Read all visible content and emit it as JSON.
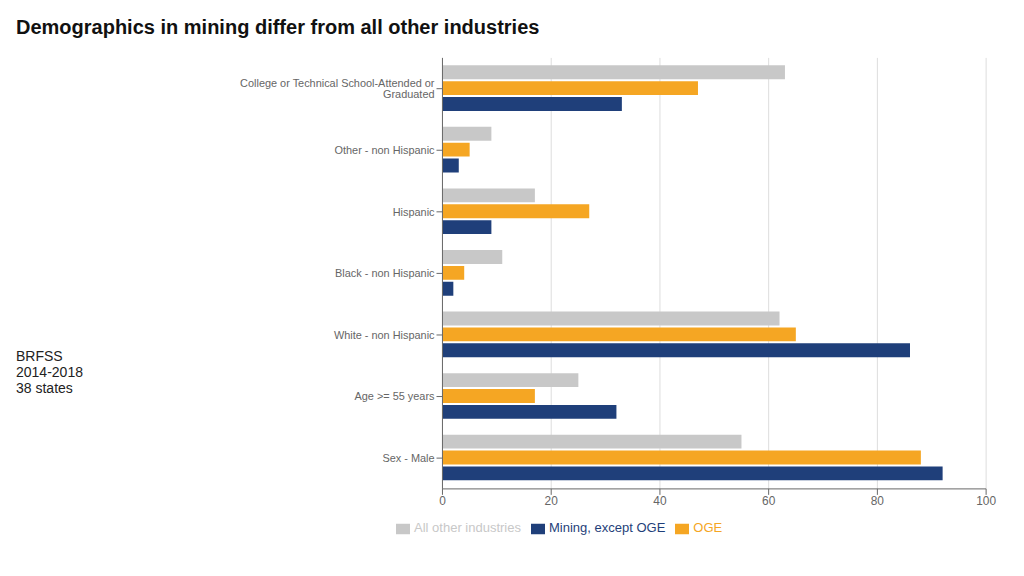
{
  "chart_data": {
    "type": "bar",
    "orientation": "horizontal",
    "title": "Demographics in mining differ from all other industries",
    "annotation": "BRFSS\n2014-2018\n38 states",
    "categories": [
      "College or Technical School-Attended or Graduated",
      "Other - non Hispanic",
      "Hispanic",
      "Black - non Hispanic",
      "White - non Hispanic",
      "Age >= 55 years",
      "Sex - Male"
    ],
    "series": [
      {
        "name": "All other industries",
        "color": "#c8c8c8",
        "values": [
          63,
          9,
          17,
          11,
          62,
          25,
          55
        ]
      },
      {
        "name": "OGE",
        "color": "#f5a623",
        "values": [
          47,
          5,
          27,
          4,
          65,
          17,
          88
        ]
      },
      {
        "name": "Mining, except OGE",
        "color": "#1f3f7a",
        "values": [
          33,
          3,
          9,
          2,
          86,
          32,
          92
        ]
      }
    ],
    "xlim": [
      0,
      100
    ],
    "xticks": [
      0,
      20,
      40,
      60,
      80,
      100
    ],
    "grid": true,
    "legend": "bottom"
  }
}
